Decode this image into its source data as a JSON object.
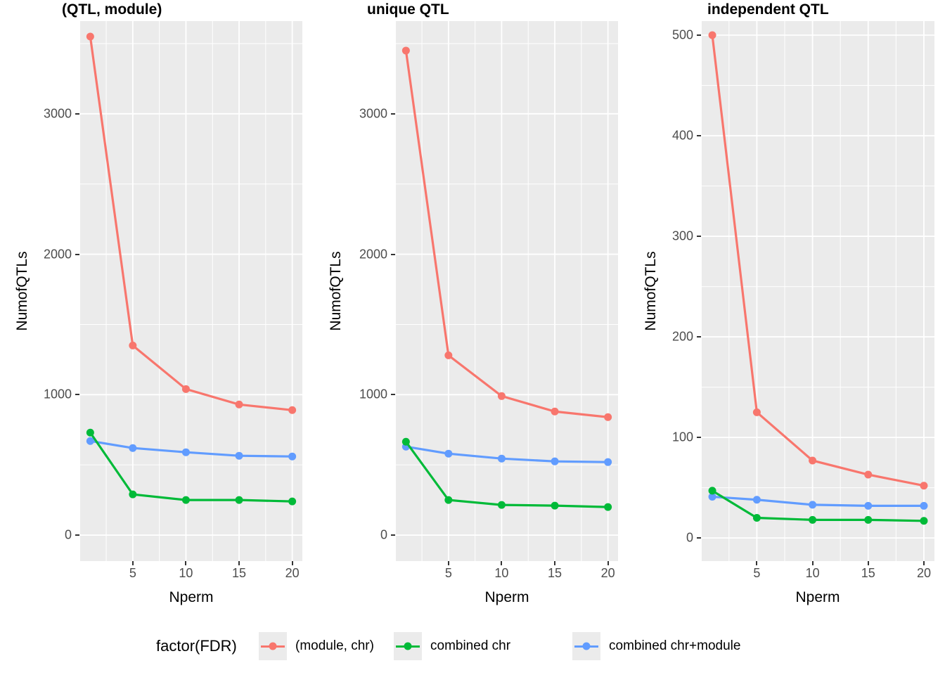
{
  "chart_data": {
    "type": "line",
    "xlabel": "Nperm",
    "ylabel": "NumofQTLs",
    "x": [
      1,
      5,
      10,
      15,
      20
    ],
    "x_ticks": [
      5,
      10,
      15,
      20
    ],
    "x_tick_labels": [
      "5",
      "10",
      "15",
      "20"
    ],
    "x_minor_ticks": [
      2.5,
      7.5,
      12.5,
      17.5
    ],
    "xlim": [
      0.05,
      20.95
    ],
    "grid": "on",
    "legend_position": "bottom",
    "legend": {
      "title": "factor(FDR)",
      "entries": [
        {
          "label": "(module, chr)",
          "color": "#F8766D"
        },
        {
          "label": "combined chr",
          "color": "#00BA38"
        },
        {
          "label": "combined chr+module",
          "color": "#619CFF"
        }
      ]
    },
    "colors": {
      "red": "#F8766D",
      "green": "#00BA38",
      "blue": "#619CFF",
      "panel_background": "#EBEBEB",
      "gridline": "#FFFFFF",
      "tick_text": "#4D4D4D"
    },
    "panels": [
      {
        "title": "(QTL, module)",
        "y_ticks": [
          0,
          1000,
          2000,
          3000
        ],
        "y_tick_labels": [
          "0",
          "1000",
          "2000",
          "3000"
        ],
        "y_minor_ticks": [
          500,
          1500,
          2500,
          3500
        ],
        "ylim": [
          -185,
          3660
        ],
        "series": [
          {
            "name": "(module, chr)",
            "color": "#F8766D",
            "values": [
              3550,
              1350,
              1040,
              930,
              890
            ]
          },
          {
            "name": "combined chr+module",
            "color": "#619CFF",
            "values": [
              670,
              620,
              590,
              565,
              560
            ]
          },
          {
            "name": "combined chr",
            "color": "#00BA38",
            "values": [
              730,
              290,
              250,
              250,
              240
            ]
          }
        ]
      },
      {
        "title": "unique QTL",
        "y_ticks": [
          0,
          1000,
          2000,
          3000
        ],
        "y_tick_labels": [
          "0",
          "1000",
          "2000",
          "3000"
        ],
        "y_minor_ticks": [
          500,
          1500,
          2500,
          3500
        ],
        "ylim": [
          -185,
          3660
        ],
        "series": [
          {
            "name": "(module, chr)",
            "color": "#F8766D",
            "values": [
              3450,
              1280,
              990,
              880,
              840
            ]
          },
          {
            "name": "combined chr+module",
            "color": "#619CFF",
            "values": [
              630,
              580,
              545,
              525,
              520
            ]
          },
          {
            "name": "combined chr",
            "color": "#00BA38",
            "values": [
              665,
              250,
              215,
              210,
              200
            ]
          }
        ]
      },
      {
        "title": "independent QTL",
        "y_ticks": [
          0,
          100,
          200,
          300,
          400,
          500
        ],
        "y_tick_labels": [
          "0",
          "100",
          "200",
          "300",
          "400",
          "500"
        ],
        "y_minor_ticks": [
          50,
          150,
          250,
          350,
          450
        ],
        "ylim": [
          -23,
          514
        ],
        "series": [
          {
            "name": "(module, chr)",
            "color": "#F8766D",
            "values": [
              500,
              125,
              77,
              63,
              52
            ]
          },
          {
            "name": "combined chr+module",
            "color": "#619CFF",
            "values": [
              41,
              38,
              33,
              32,
              32
            ]
          },
          {
            "name": "combined chr",
            "color": "#00BA38",
            "values": [
              47,
              20,
              18,
              18,
              17
            ]
          }
        ]
      }
    ]
  }
}
